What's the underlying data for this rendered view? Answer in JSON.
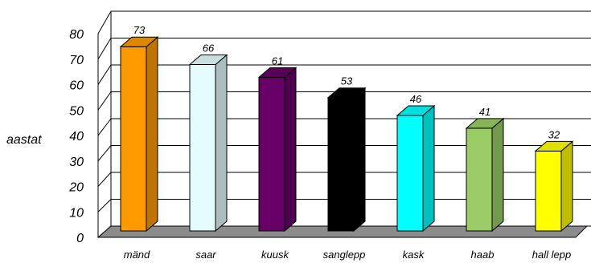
{
  "chart_data": {
    "type": "bar",
    "style": "3d-column",
    "ylabel": "aastat",
    "ylim": [
      0,
      80
    ],
    "yticks": [
      0,
      10,
      20,
      30,
      40,
      50,
      60,
      70,
      80
    ],
    "grid": true,
    "categories": [
      "mänd",
      "saar",
      "kuusk",
      "sanglepp",
      "kask",
      "haab",
      "hall lepp"
    ],
    "values": [
      73,
      66,
      61,
      53,
      46,
      41,
      32
    ],
    "colors": [
      "#FF9900",
      "#E4FCFC",
      "#660066",
      "#000000",
      "#00FFFF",
      "#99CC66",
      "#FFFF00"
    ],
    "floor_color": "#8C8C8C"
  }
}
